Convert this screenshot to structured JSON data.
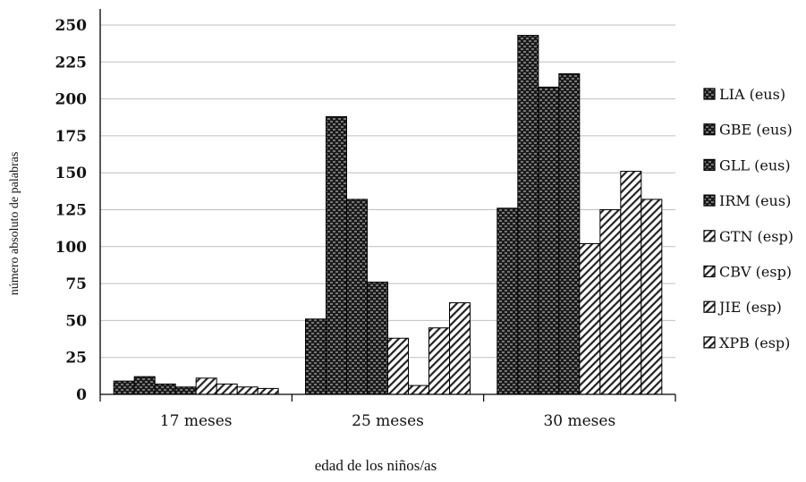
{
  "chart_data": {
    "type": "bar",
    "title": "",
    "xlabel": "edad de los niños/as",
    "ylabel": "número absoluto de palabras",
    "ylim": [
      0,
      250
    ],
    "yticks": [
      "0",
      "25",
      "50",
      "75",
      "100",
      "125",
      "150",
      "175",
      "200",
      "225",
      "250"
    ],
    "categories": [
      "17 meses",
      "25 meses",
      "30 meses"
    ],
    "grid": true,
    "legend_position": "right",
    "series": [
      {
        "name": "LIA (eus)",
        "pattern": "dark",
        "values": [
          9,
          51,
          126
        ]
      },
      {
        "name": "GBE (eus)",
        "pattern": "dark",
        "values": [
          12,
          188,
          243
        ]
      },
      {
        "name": "GLL (eus)",
        "pattern": "dark",
        "values": [
          7,
          132,
          208
        ]
      },
      {
        "name": "IRM (eus)",
        "pattern": "dark",
        "values": [
          5,
          76,
          217
        ]
      },
      {
        "name": "GTN (esp)",
        "pattern": "light",
        "values": [
          11,
          38,
          102
        ]
      },
      {
        "name": "CBV (esp)",
        "pattern": "light",
        "values": [
          7,
          6,
          125
        ]
      },
      {
        "name": "JIE (esp)",
        "pattern": "light",
        "values": [
          5,
          45,
          151
        ]
      },
      {
        "name": "XPB (esp)",
        "pattern": "light",
        "values": [
          4,
          62,
          132
        ]
      }
    ]
  }
}
